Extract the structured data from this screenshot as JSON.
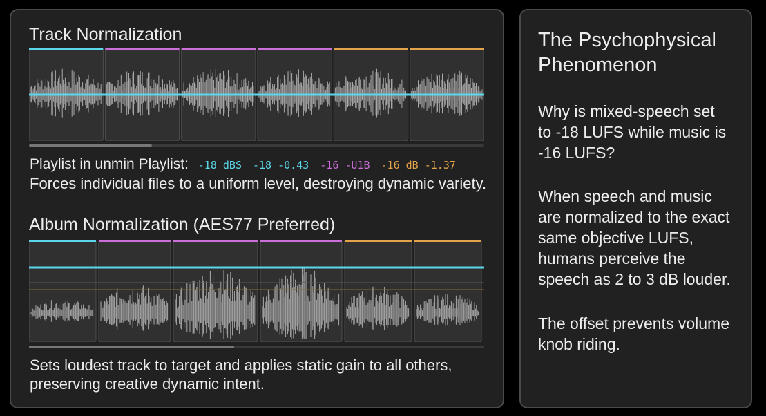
{
  "colors": {
    "cyan": "#5ad8ea",
    "magenta": "#cc6fd9",
    "orange": "#e3a34a",
    "wave": "#a8a8a8"
  },
  "track": {
    "title": "Track Normalization",
    "playlist_label": "Playlist in unmin Playlist:",
    "values": [
      {
        "text": "-18 dBS",
        "color": "#5ad8ea"
      },
      {
        "text": "-18 -0.43",
        "color": "#5ad8ea"
      },
      {
        "text": "-16 -U1B",
        "color": "#cc6fd9"
      },
      {
        "text": "-16 dB -1.37",
        "color": "#e3a34a"
      }
    ],
    "caption": "Forces individual files to a uniform level, destroying dynamic variety.",
    "clip_colors": [
      "#5ad8ea",
      "#cc6fd9",
      "#cc6fd9",
      "#cc6fd9",
      "#e3a34a",
      "#e3a34a"
    ],
    "scroll_fraction": 0.27
  },
  "album": {
    "title": "Album Normalization (AES77 Preferred)",
    "caption_line1": "Sets loudest track to target and applies static gain to all others,",
    "caption_line2": "preserving creative dynamic intent.",
    "clip_colors": [
      "#5ad8ea",
      "#cc6fd9",
      "#cc6fd9",
      "#cc6fd9",
      "#e3a34a",
      "#e3a34a"
    ],
    "clip_levels": [
      0.3,
      0.62,
      0.95,
      0.98,
      0.58,
      0.42
    ],
    "scroll_fraction": 0.45
  },
  "side": {
    "title_line1": "The Psychophysical",
    "title_line2": "Phenomenon",
    "p1": [
      "Why is mixed-speech set",
      "to -18 LUFS while music is",
      "-16 LUFS?"
    ],
    "p2": [
      "When speech and music",
      "are normalized to the exact",
      "same objective LUFS,",
      "humans perceive the",
      "speech as 2 to 3 dB louder."
    ],
    "p3": [
      "The offset prevents volume",
      "knob riding."
    ]
  }
}
